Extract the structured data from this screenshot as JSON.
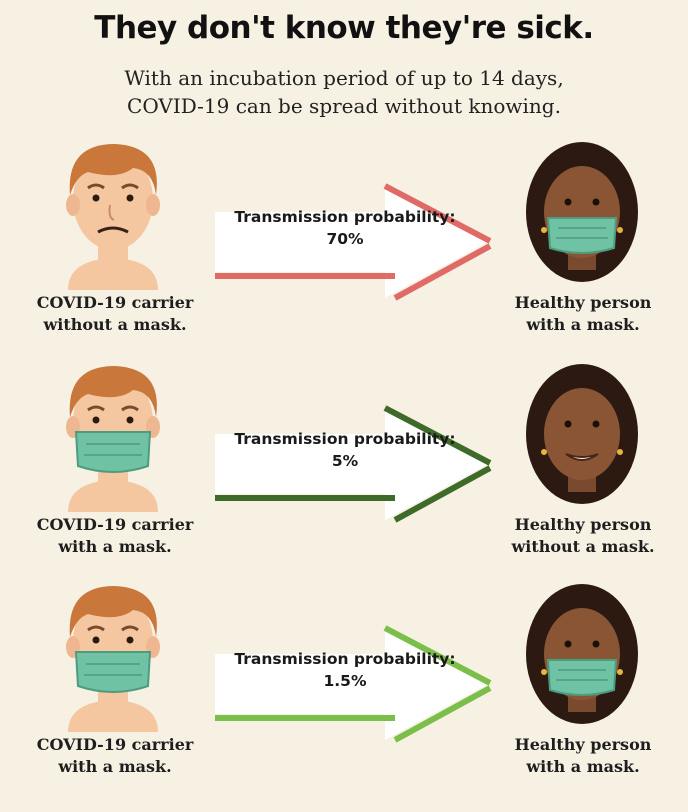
{
  "header": {
    "title": "They don't know they're sick.",
    "subtitle_line1": "With an incubation period of up to 14 days,",
    "subtitle_line2": "COVID-19 can be spread without knowing."
  },
  "rows": [
    {
      "carrier_line1": "COVID-19 carrier",
      "carrier_line2": "without a mask.",
      "probability_label": "Transmission probability:",
      "probability_value": "70%",
      "healthy_line1": "Healthy person",
      "healthy_line2": "with a mask.",
      "arrow_color": "#e06a66"
    },
    {
      "carrier_line1": "COVID-19 carrier",
      "carrier_line2": "with a mask.",
      "probability_label": "Transmission probability:",
      "probability_value": "5%",
      "healthy_line1": "Healthy person",
      "healthy_line2": "without a mask.",
      "arrow_color": "#3e6a2a"
    },
    {
      "carrier_line1": "COVID-19 carrier",
      "carrier_line2": "with a mask.",
      "probability_label": "Transmission probability:",
      "probability_value": "1.5%",
      "healthy_line1": "Healthy person",
      "healthy_line2": "with a mask.",
      "arrow_color": "#7bbf4a"
    }
  ],
  "colors": {
    "background": "#f6f1e3",
    "mask": "#6fc3a4",
    "carrier_hair": "#c9773b",
    "carrier_skin": "#f4c7a1",
    "healthy_hair": "#2c1a12",
    "healthy_skin": "#7a4a2e"
  }
}
